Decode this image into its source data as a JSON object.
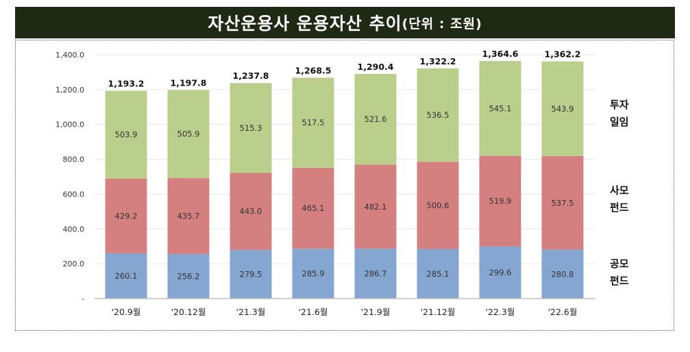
{
  "chart_data": {
    "type": "bar",
    "stacked": true,
    "title": "자산운용사 운용자산 추이",
    "title_unit": "(단위 : 조원)",
    "categories": [
      "'20.9월",
      "'20.12월",
      "'21.3월",
      "'21.6월",
      "'21.9월",
      "'21.12월",
      "'22.3월",
      "'22.6월"
    ],
    "series": [
      {
        "name": "공모 펀드",
        "legend_lines": [
          "공모",
          "펀드"
        ],
        "color": "#84a6d0",
        "values": [
          260.1,
          256.2,
          279.5,
          285.9,
          286.7,
          285.1,
          299.6,
          280.8
        ]
      },
      {
        "name": "사모 펀드",
        "legend_lines": [
          "사모",
          "펀드"
        ],
        "color": "#d58080",
        "values": [
          429.2,
          435.7,
          443.0,
          465.1,
          482.1,
          500.6,
          519.9,
          537.5
        ]
      },
      {
        "name": "투자 일임",
        "legend_lines": [
          "투자",
          "일임"
        ],
        "color": "#bbcf8c",
        "values": [
          503.9,
          505.9,
          515.3,
          517.5,
          521.6,
          536.5,
          545.1,
          543.9
        ]
      }
    ],
    "totals": [
      "1,193.2",
      "1,197.8",
      "1,237.8",
      "1,268.5",
      "1,290.4",
      "1,322.2",
      "1,364.6",
      "1,362.2"
    ],
    "series_labels": [
      [
        "260.1",
        "256.2",
        "279.5",
        "285.9",
        "286.7",
        "285.1",
        "299.6",
        "280.8"
      ],
      [
        "429.2",
        "435.7",
        "443.0",
        "465.1",
        "482.1",
        "500.6",
        "519.9",
        "537.5"
      ],
      [
        "503.9",
        "505.9",
        "515.3",
        "517.5",
        "521.6",
        "536.5",
        "545.1",
        "543.9"
      ]
    ],
    "yticks": [
      0,
      200,
      400,
      600,
      800,
      1000,
      1200,
      1400
    ],
    "ytick_labels": [
      "-",
      "200.0",
      "400.0",
      "600.0",
      "800.0",
      "1,000.0",
      "1,200.0",
      "1,400.0"
    ],
    "ylim": [
      0,
      1400
    ],
    "grid": true,
    "legend_placement": "right",
    "xlabel": "",
    "ylabel": ""
  }
}
